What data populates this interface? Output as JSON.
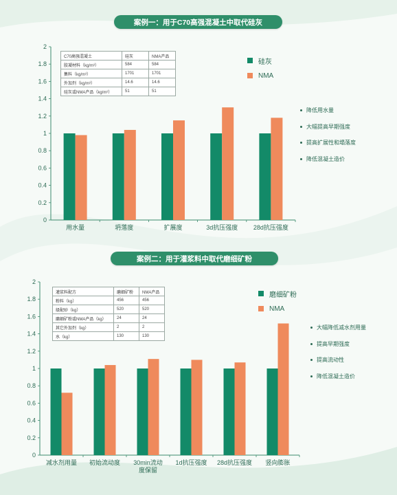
{
  "colors": {
    "silica": "#138a68",
    "nma": "#ef8a5c",
    "accent": "#2f8f6a",
    "axis": "#3b8a6c"
  },
  "case1": {
    "title": "案例一：用于C70高强混凝土中取代硅灰",
    "table": {
      "header": [
        "C70高强混凝土",
        "硅灰",
        "NMA产品"
      ],
      "rows": [
        [
          "胶凝材料（kg/m³）",
          "584",
          "584"
        ],
        [
          "集料（kg/m³）",
          "1701",
          "1701"
        ],
        [
          "外加剂（kg/m³）",
          "14.6",
          "14.6"
        ],
        [
          "硅灰或NMA产品（kg/m³）",
          "51",
          "51"
        ]
      ]
    },
    "legend": [
      "硅灰",
      "NMA"
    ],
    "benefits": [
      "降低用水量",
      "大幅提高早期强度",
      "提高扩展性和塌落度",
      "降低混凝土造价"
    ]
  },
  "case2": {
    "title": "案例二：用于灌浆料中取代磨细矿粉",
    "table": {
      "header": [
        "灌浆料配方",
        "磨细矿粉",
        "NMA产品"
      ],
      "rows": [
        [
          "粉料（kg）",
          "456",
          "456"
        ],
        [
          "级配砂（kg）",
          "520",
          "520"
        ],
        [
          "磨细矿粉或NMA产品（kg）",
          "24",
          "24"
        ],
        [
          "其它外加剂（kg）",
          "2",
          "2"
        ],
        [
          "水（kg）",
          "130",
          "130"
        ]
      ]
    },
    "legend": [
      "磨细矿粉",
      "NMA"
    ],
    "benefits": [
      "大幅降低减水剂用量",
      "提高早期强度",
      "提高流动性",
      "降低混凝土造价"
    ]
  },
  "chart_data": [
    {
      "type": "bar",
      "categories": [
        "用水量",
        "坍落度",
        "扩展度",
        "3d抗压强度",
        "28d抗压强度"
      ],
      "series": [
        {
          "name": "硅灰",
          "values": [
            1,
            1,
            1,
            1,
            1
          ]
        },
        {
          "name": "NMA",
          "values": [
            0.98,
            1.04,
            1.15,
            1.3,
            1.18
          ]
        }
      ],
      "ylim": [
        0,
        2
      ],
      "yticks": [
        "0",
        "0.2",
        "0.4",
        "0.6",
        "0.8",
        "1",
        "1.2",
        "1.4",
        "1.6",
        "1.8",
        "2"
      ],
      "grid": false,
      "legend": "right"
    },
    {
      "type": "bar",
      "categories": [
        "减水剂用量",
        "初始流动度",
        "30min流动度保留",
        "1d抗压强度",
        "28d抗压强度",
        "竖向膨胀"
      ],
      "series": [
        {
          "name": "磨细矿粉",
          "values": [
            1,
            1,
            1,
            1,
            1,
            1
          ]
        },
        {
          "name": "NMA",
          "values": [
            0.72,
            1.04,
            1.11,
            1.1,
            1.07,
            1.52
          ]
        }
      ],
      "ylim": [
        0,
        2
      ],
      "yticks": [
        "0",
        "0.2",
        "0.4",
        "0.6",
        "0.8",
        "1",
        "1.2",
        "1.4",
        "1.6",
        "1.8",
        "2"
      ],
      "grid": false,
      "legend": "right"
    }
  ]
}
